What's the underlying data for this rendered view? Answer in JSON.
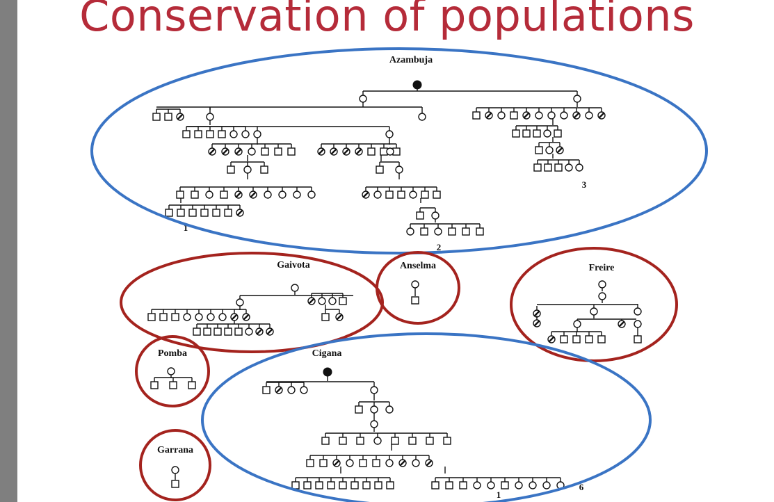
{
  "slide": {
    "title": "Conservation of populations"
  },
  "colors": {
    "title": "#b52b39",
    "blue_ring": "#3a74c4",
    "red_ring": "#a4231e",
    "left_bar": "#7f7f7f"
  },
  "populations": [
    {
      "id": "azambuja",
      "name": "Azambuja",
      "ring": "blue",
      "labels": [
        "1",
        "2",
        "3"
      ]
    },
    {
      "id": "gaivota",
      "name": "Gaivota",
      "ring": "red"
    },
    {
      "id": "anselma",
      "name": "Anselma",
      "ring": "red"
    },
    {
      "id": "freire",
      "name": "Freire",
      "ring": "red"
    },
    {
      "id": "pomba",
      "name": "Pomba",
      "ring": "red"
    },
    {
      "id": "cigana",
      "name": "Cigana",
      "ring": "blue",
      "labels": [
        "1",
        "6"
      ]
    },
    {
      "id": "garrana",
      "name": "Garrana",
      "ring": "red"
    }
  ]
}
